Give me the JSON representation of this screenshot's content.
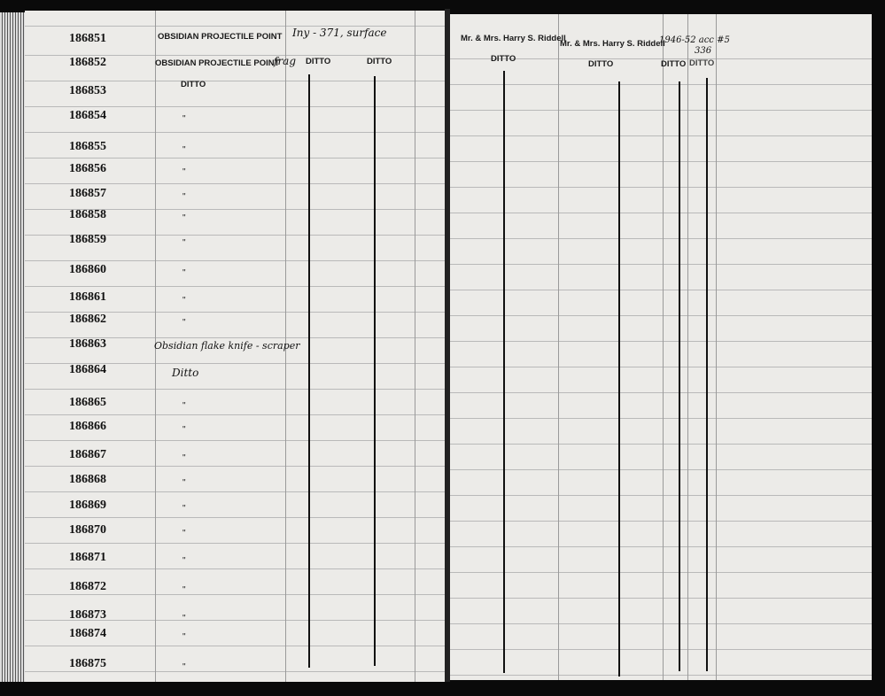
{
  "catalog_numbers": [
    "186851",
    "186852",
    "186853",
    "186854",
    "186855",
    "186856",
    "186857",
    "186858",
    "186859",
    "186860",
    "186861",
    "186862",
    "186863",
    "186864",
    "186865",
    "186866",
    "186867",
    "186868",
    "186869",
    "186870",
    "186871",
    "186872",
    "186873",
    "186874",
    "186875"
  ],
  "left_page": {
    "row1_description": "OBSIDIAN PROJECTILE POINT",
    "row1_note": "Iny - 371, surface",
    "row2_description": "OBSIDIAN PROJECTILE POINT",
    "row2_note": "frag",
    "row2_ditto_1": "DITTO",
    "row2_ditto_2": "DITTO",
    "row3_description": "DITTO",
    "row13_description": "Obsidian flake knife - scraper",
    "row14_description": "Ditto",
    "ditto_mark": "\""
  },
  "right_page": {
    "donor_1": "Mr. & Mrs. Harry S. Riddell",
    "donor_2": "Mr. & Mrs. Harry S. Riddell",
    "accession_note": "1946-52 acc #5",
    "accession_number": "336",
    "ditto_1": "DITTO",
    "ditto_2": "DITTO",
    "ditto_3": "DITTO",
    "ditto_4": "DITTO"
  }
}
